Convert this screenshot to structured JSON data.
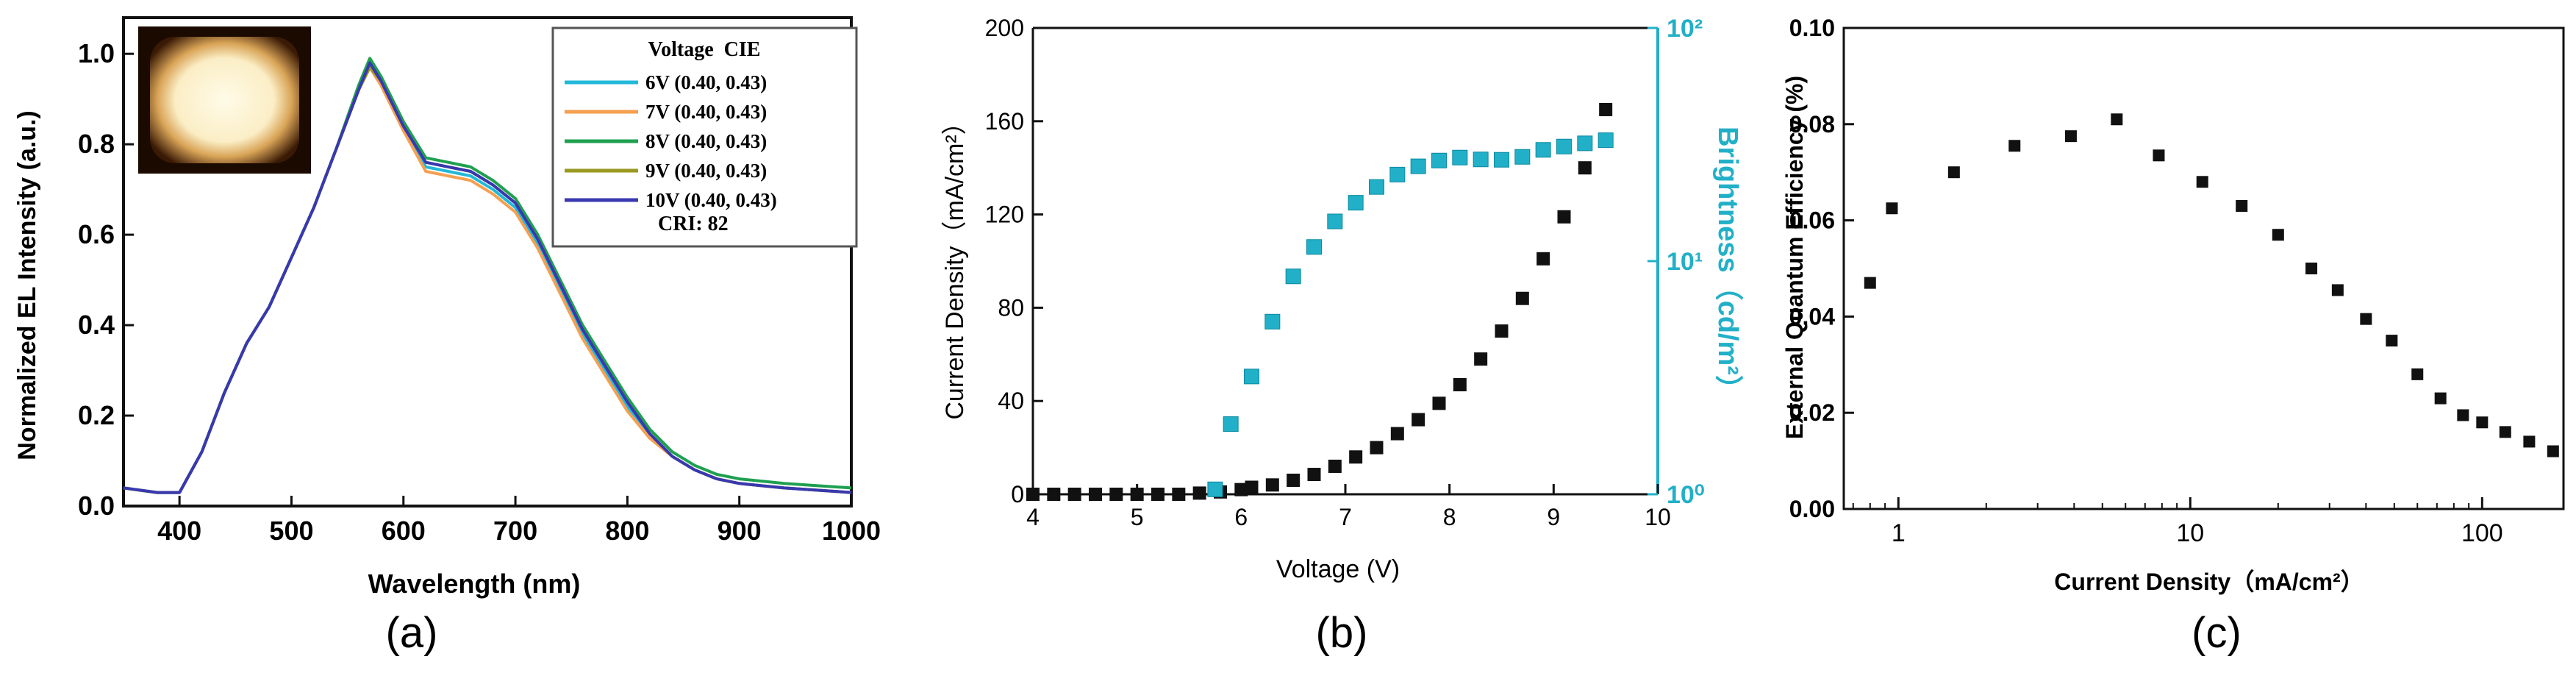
{
  "chart_data": [
    {
      "panel": "(a)",
      "type": "line",
      "xlabel": "Wavelength (nm)",
      "ylabel": "Normalized EL Intensity (a.u.)",
      "xlim": [
        350,
        1000
      ],
      "ylim": [
        0,
        1.08
      ],
      "xticks": [
        400,
        500,
        600,
        700,
        800,
        900,
        1000
      ],
      "yticks": [
        0.0,
        0.2,
        0.4,
        0.6,
        0.8,
        1.0
      ],
      "legend_title": "Voltage  CIE",
      "legend_note": "CRI: 82",
      "x": [
        350,
        380,
        400,
        420,
        440,
        460,
        480,
        500,
        520,
        540,
        560,
        570,
        580,
        600,
        620,
        640,
        660,
        680,
        700,
        720,
        740,
        760,
        780,
        800,
        820,
        840,
        860,
        880,
        900,
        940,
        1000
      ],
      "series": [
        {
          "name": "6V (0.40, 0.43)",
          "color": "#22b8d8",
          "values": [
            0.04,
            0.03,
            0.03,
            0.12,
            0.25,
            0.36,
            0.44,
            0.55,
            0.66,
            0.79,
            0.92,
            0.98,
            0.94,
            0.84,
            0.75,
            0.74,
            0.73,
            0.7,
            0.66,
            0.58,
            0.48,
            0.38,
            0.3,
            0.22,
            0.16,
            0.11,
            0.08,
            0.06,
            0.05,
            0.04,
            0.03
          ]
        },
        {
          "name": "7V (0.40, 0.43)",
          "color": "#f5a050",
          "values": [
            0.04,
            0.03,
            0.03,
            0.12,
            0.25,
            0.36,
            0.44,
            0.55,
            0.66,
            0.79,
            0.92,
            0.97,
            0.93,
            0.83,
            0.74,
            0.73,
            0.72,
            0.69,
            0.65,
            0.57,
            0.47,
            0.37,
            0.29,
            0.21,
            0.15,
            0.11,
            0.08,
            0.06,
            0.05,
            0.04,
            0.03
          ]
        },
        {
          "name": "8V (0.40, 0.43)",
          "color": "#1fa050",
          "values": [
            0.04,
            0.03,
            0.03,
            0.12,
            0.25,
            0.36,
            0.44,
            0.55,
            0.66,
            0.79,
            0.93,
            0.99,
            0.95,
            0.85,
            0.77,
            0.76,
            0.75,
            0.72,
            0.68,
            0.6,
            0.5,
            0.4,
            0.32,
            0.24,
            0.17,
            0.12,
            0.09,
            0.07,
            0.06,
            0.05,
            0.04
          ]
        },
        {
          "name": "9V (0.40, 0.43)",
          "color": "#9a9a20",
          "values": [
            0.04,
            0.03,
            0.03,
            0.12,
            0.25,
            0.36,
            0.44,
            0.55,
            0.66,
            0.79,
            0.92,
            0.97,
            0.94,
            0.84,
            0.76,
            0.75,
            0.74,
            0.71,
            0.67,
            0.59,
            0.49,
            0.39,
            0.31,
            0.23,
            0.16,
            0.11,
            0.08,
            0.06,
            0.05,
            0.04,
            0.03
          ]
        },
        {
          "name": "10V (0.40, 0.43)",
          "color": "#3838b0",
          "values": [
            0.04,
            0.03,
            0.03,
            0.12,
            0.25,
            0.36,
            0.44,
            0.55,
            0.66,
            0.79,
            0.92,
            0.98,
            0.94,
            0.84,
            0.76,
            0.75,
            0.74,
            0.71,
            0.67,
            0.59,
            0.49,
            0.39,
            0.31,
            0.23,
            0.16,
            0.11,
            0.08,
            0.06,
            0.05,
            0.04,
            0.03
          ]
        }
      ]
    },
    {
      "panel": "(b)",
      "type": "scatter",
      "xlabel": "Voltage (V)",
      "ylabel": "Current Density（mA/cm²）",
      "y2label": "Brightness（cd/m²）",
      "xlim": [
        4,
        10
      ],
      "ylim": [
        0,
        200
      ],
      "y2lim": [
        1,
        100
      ],
      "y2scale": "log",
      "xticks": [
        4,
        5,
        6,
        7,
        8,
        9,
        10
      ],
      "yticks": [
        0,
        40,
        80,
        120,
        160,
        200
      ],
      "y2ticks": [
        "10⁰",
        "10¹",
        "10²"
      ],
      "series": [
        {
          "name": "Current Density",
          "color": "#111111",
          "axis": "left",
          "x": [
            4.0,
            4.2,
            4.4,
            4.6,
            4.8,
            5.0,
            5.2,
            5.4,
            5.6,
            5.8,
            6.0,
            6.1,
            6.3,
            6.5,
            6.7,
            6.9,
            7.1,
            7.3,
            7.5,
            7.7,
            7.9,
            8.1,
            8.3,
            8.5,
            8.7,
            8.9,
            9.1,
            9.3,
            9.5
          ],
          "values": [
            0,
            0,
            0,
            0,
            0,
            0,
            0,
            0,
            0.5,
            1,
            2,
            3,
            4,
            6,
            8.5,
            12,
            16,
            20,
            26,
            32,
            39,
            47,
            58,
            70,
            84,
            101,
            119,
            140,
            165
          ]
        },
        {
          "name": "Brightness",
          "color": "#22b0c8",
          "axis": "right",
          "x": [
            5.75,
            5.9,
            6.1,
            6.3,
            6.5,
            6.7,
            6.9,
            7.1,
            7.3,
            7.5,
            7.7,
            7.9,
            8.1,
            8.3,
            8.5,
            8.7,
            8.9,
            9.1,
            9.3,
            9.5
          ],
          "values": [
            1.05,
            2.0,
            3.2,
            5.5,
            8.6,
            11.5,
            14.8,
            17.8,
            20.8,
            23.5,
            25.5,
            27.0,
            27.8,
            27.3,
            27.2,
            28.0,
            30.0,
            31.0,
            32.0,
            33.0
          ]
        }
      ]
    },
    {
      "panel": "(c)",
      "type": "scatter",
      "xlabel": "Current Density（mA/cm²）",
      "ylabel": "External Quantum Efficiency (%)",
      "xscale": "log",
      "xlim": [
        0.65,
        190
      ],
      "ylim": [
        0,
        0.1
      ],
      "xticks": [
        1,
        10,
        100
      ],
      "yticks": [
        0.0,
        0.02,
        0.04,
        0.06,
        0.08,
        0.1
      ],
      "series": [
        {
          "name": "EQE",
          "color": "#111111",
          "x": [
            0.8,
            0.95,
            1.55,
            2.5,
            3.9,
            5.6,
            7.8,
            11,
            15,
            20,
            26,
            32,
            40,
            49,
            60,
            72,
            86,
            100,
            120,
            145,
            175
          ],
          "values": [
            0.047,
            0.0625,
            0.07,
            0.0755,
            0.0775,
            0.081,
            0.0735,
            0.068,
            0.063,
            0.057,
            0.05,
            0.0455,
            0.0395,
            0.035,
            0.028,
            0.023,
            0.0195,
            0.018,
            0.016,
            0.014,
            0.012
          ]
        }
      ]
    }
  ],
  "panel_labels": [
    "(a)",
    "(b)",
    "(c)"
  ],
  "colors": {
    "axis": "#111111",
    "brightness": "#22b0c8",
    "markers": "#111111"
  }
}
